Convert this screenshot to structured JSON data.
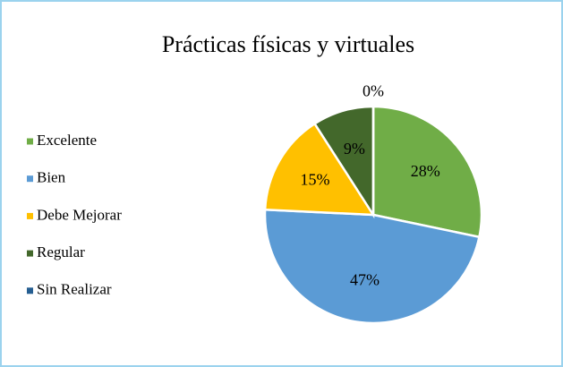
{
  "chart_data": {
    "type": "pie",
    "title": "Prácticas físicas y virtuales",
    "categories": [
      "Excelente",
      "Bien",
      "Debe Mejorar",
      "Regular",
      "Sin Realizar"
    ],
    "values": [
      28,
      47,
      15,
      9,
      0
    ],
    "value_labels": [
      "28%",
      "47%",
      "15%",
      "9%",
      "0%"
    ],
    "colors": [
      "#70ad47",
      "#5b9bd5",
      "#ffc000",
      "#43682b",
      "#255e91"
    ],
    "legend": "left"
  }
}
